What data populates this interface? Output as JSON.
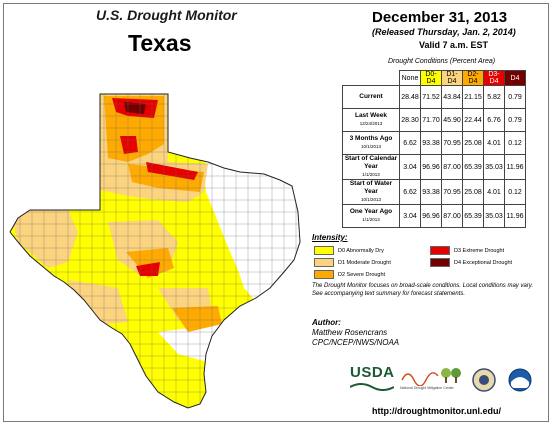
{
  "header": {
    "monitor_title": "U.S. Drought Monitor",
    "state": "Texas",
    "date": "December 31, 2013",
    "released": "(Released Thursday, Jan. 2, 2014)",
    "valid": "Valid 7 a.m. EST"
  },
  "conditions": {
    "title": "Drought Conditions (Percent Area)",
    "columns": [
      "None",
      "D0-D4",
      "D1-D4",
      "D2-D4",
      "D3-D4",
      "D4"
    ],
    "column_colors": [
      "#ffffff",
      "#ffff00",
      "#fcd37f",
      "#ffaa00",
      "#e60000",
      "#730000"
    ],
    "rows": [
      {
        "label": "Current",
        "sub": "",
        "values": [
          "28.48",
          "71.52",
          "43.84",
          "21.15",
          "5.82",
          "0.79"
        ]
      },
      {
        "label": "Last Week",
        "sub": "12/24/2013",
        "values": [
          "28.30",
          "71.70",
          "45.90",
          "22.44",
          "6.76",
          "0.79"
        ]
      },
      {
        "label": "3 Months Ago",
        "sub": "10/1/2013",
        "values": [
          "6.62",
          "93.38",
          "70.95",
          "25.08",
          "4.01",
          "0.12"
        ]
      },
      {
        "label": "Start of Calendar Year",
        "sub": "1/1/2013",
        "values": [
          "3.04",
          "96.96",
          "87.00",
          "65.39",
          "35.03",
          "11.96"
        ]
      },
      {
        "label": "Start of Water Year",
        "sub": "10/1/2013",
        "values": [
          "6.62",
          "93.38",
          "70.95",
          "25.08",
          "4.01",
          "0.12"
        ]
      },
      {
        "label": "One Year Ago",
        "sub": "1/1/2013",
        "values": [
          "3.04",
          "96.96",
          "87.00",
          "65.39",
          "35.03",
          "11.96"
        ]
      }
    ]
  },
  "intensity": {
    "title": "Intensity:",
    "items": [
      {
        "label": "D0 Abnormally Dry",
        "color": "#ffff00"
      },
      {
        "label": "D1 Moderate Drought",
        "color": "#fcd37f"
      },
      {
        "label": "D2 Severe Drought",
        "color": "#ffaa00"
      },
      {
        "label": "D3 Extreme Drought",
        "color": "#e60000"
      },
      {
        "label": "D4 Exceptional Drought",
        "color": "#730000"
      }
    ]
  },
  "note": "The Drought Monitor focuses on broad-scale conditions. Local conditions may vary. See accompanying text summary for forecast statements.",
  "author": {
    "label": "Author:",
    "name": "Matthew Rosencrans",
    "org": "CPC/NCEP/NWS/NOAA"
  },
  "logos": {
    "usda": "USDA",
    "ndmc": "National Drought Mitigation Center"
  },
  "url": "http://droughtmonitor.unl.edu/"
}
